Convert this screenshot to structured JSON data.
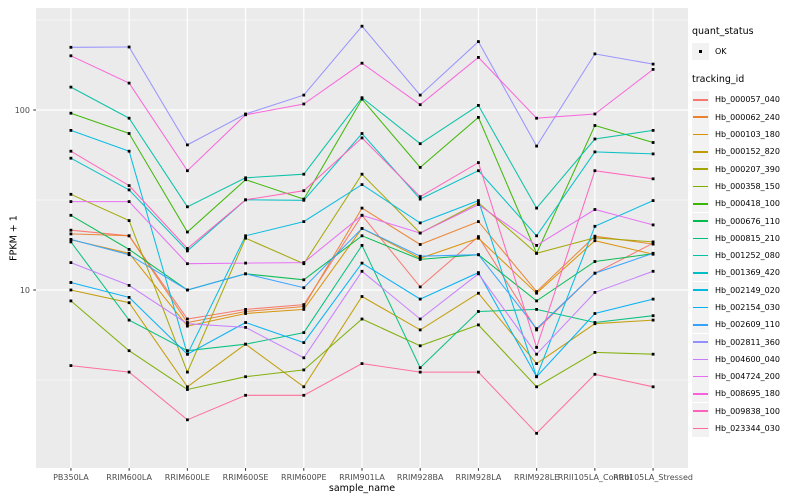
{
  "chart_data": {
    "type": "line",
    "title": "",
    "xlabel": "sample_name",
    "ylabel": "FPKM + 1",
    "y_scale": "log10",
    "y_ticks": [
      100,
      10
    ],
    "y_minor_gridlines": [
      316.2,
      31.62,
      3.162
    ],
    "ylim": [
      1.03,
      370
    ],
    "grid": "on",
    "legend_position": "right",
    "panel_background": "#EBEBEB",
    "gridline_color": "#FFFFFF",
    "tick_color": "#333333",
    "point_color": "#000000",
    "point_shape": "square",
    "categories": [
      "PB350LA",
      "RRIM600LA",
      "RRIM600LE",
      "RRIM600SE",
      "RRIM600PE",
      "RRIM901LA",
      "RRIM928BA",
      "RRIM928LA",
      "RRIM928LE",
      "RRII105LA_Control",
      "RRII105LA_Stressed"
    ],
    "series": [
      {
        "name": "Hb_000057_040",
        "color": "#F8766D",
        "values": [
          21.5,
          20,
          6.9,
          7.8,
          8.3,
          26,
          10.4,
          19.8,
          6.0,
          12.4,
          18.2
        ]
      },
      {
        "name": "Hb_000062_240",
        "color": "#EA8331",
        "values": [
          20.5,
          20,
          6.6,
          7.6,
          8.1,
          28.5,
          17.9,
          24,
          9.8,
          19.9,
          18
        ]
      },
      {
        "name": "Hb_000103_180",
        "color": "#D89000",
        "values": [
          19,
          16,
          6.3,
          7.4,
          7.8,
          22,
          15,
          19.4,
          9.6,
          18.8,
          15.8
        ]
      },
      {
        "name": "Hb_000152_820",
        "color": "#C09B00",
        "values": [
          10,
          8.5,
          2.9,
          5.0,
          2.9,
          9.2,
          6.0,
          9.6,
          3.9,
          6.5,
          6.8
        ]
      },
      {
        "name": "Hb_000207_390",
        "color": "#A3A500",
        "values": [
          34,
          24.3,
          3.5,
          19.4,
          14,
          44,
          20.7,
          30.5,
          16,
          19.5,
          18.5
        ]
      },
      {
        "name": "Hb_000358_150",
        "color": "#7CAE00",
        "values": [
          8.7,
          4.6,
          2.8,
          3.3,
          3.6,
          6.9,
          4.9,
          6.4,
          2.9,
          4.5,
          4.4
        ]
      },
      {
        "name": "Hb_000418_100",
        "color": "#39B600",
        "values": [
          96,
          74,
          21,
          41,
          32,
          115,
          48,
          91,
          16,
          82,
          66
        ]
      },
      {
        "name": "Hb_000676_110",
        "color": "#00BB4E",
        "values": [
          26,
          16.8,
          10,
          12.3,
          11.4,
          20,
          14.8,
          15.7,
          8.7,
          14.4,
          15.9
        ]
      },
      {
        "name": "Hb_000815_210",
        "color": "#00BF7D",
        "values": [
          18.5,
          6.8,
          4.6,
          5.0,
          5.8,
          17.7,
          3.7,
          7.6,
          7.8,
          6.6,
          7.2
        ]
      },
      {
        "name": "Hb_001252_080",
        "color": "#00C1A3",
        "values": [
          134,
          90,
          29,
          42,
          44,
          117,
          65,
          106,
          28.5,
          69,
          77
        ]
      },
      {
        "name": "Hb_001369_420",
        "color": "#00BFC4",
        "values": [
          54,
          36,
          16.5,
          31.7,
          31.5,
          74,
          32,
          46,
          20,
          58.5,
          57
        ]
      },
      {
        "name": "Hb_002149_020",
        "color": "#00BAE0",
        "values": [
          77,
          59,
          4.4,
          20,
          24,
          38.5,
          23.6,
          31.4,
          3.3,
          22.6,
          31.4
        ]
      },
      {
        "name": "Hb_002154_030",
        "color": "#00B0F6",
        "values": [
          11,
          9.1,
          4.4,
          6.6,
          5.1,
          14.1,
          8.9,
          12.5,
          3.3,
          7.4,
          8.9
        ]
      },
      {
        "name": "Hb_002609_110",
        "color": "#35A2FF",
        "values": [
          19.1,
          15.7,
          10,
          12.3,
          10.3,
          22,
          15.4,
          15.7,
          6.1,
          12.4,
          16
        ]
      },
      {
        "name": "Hb_002811_360",
        "color": "#9590FF",
        "values": [
          223,
          224,
          64,
          95,
          121,
          292,
          121,
          240,
          63,
          205,
          180
        ]
      },
      {
        "name": "Hb_004600_040",
        "color": "#C77CFF",
        "values": [
          14.2,
          10.6,
          6.5,
          6.2,
          4.2,
          12.7,
          6.9,
          12.3,
          4.4,
          9.7,
          12.7
        ]
      },
      {
        "name": "Hb_004724_200",
        "color": "#E76BF3",
        "values": [
          31,
          31,
          14,
          14.1,
          14.2,
          26,
          20.7,
          29.8,
          17.7,
          28,
          23
        ]
      },
      {
        "name": "Hb_008695_180",
        "color": "#FA62DB",
        "values": [
          200,
          141,
          46,
          94,
          108,
          182,
          107,
          196,
          90,
          95,
          168
        ]
      },
      {
        "name": "Hb_009838_100",
        "color": "#FF62BC",
        "values": [
          59,
          38,
          17,
          31.7,
          35.6,
          70,
          33,
          51,
          4.8,
          46,
          41.5
        ]
      },
      {
        "name": "Hb_023344_030",
        "color": "#FF6A98",
        "values": [
          3.8,
          3.5,
          1.9,
          2.6,
          2.6,
          3.9,
          3.5,
          3.5,
          1.6,
          3.4,
          2.9
        ]
      }
    ],
    "legend": {
      "quant_status_title": "quant_status",
      "quant_status_ok_label": "OK",
      "tracking_id_title": "tracking_id"
    }
  }
}
